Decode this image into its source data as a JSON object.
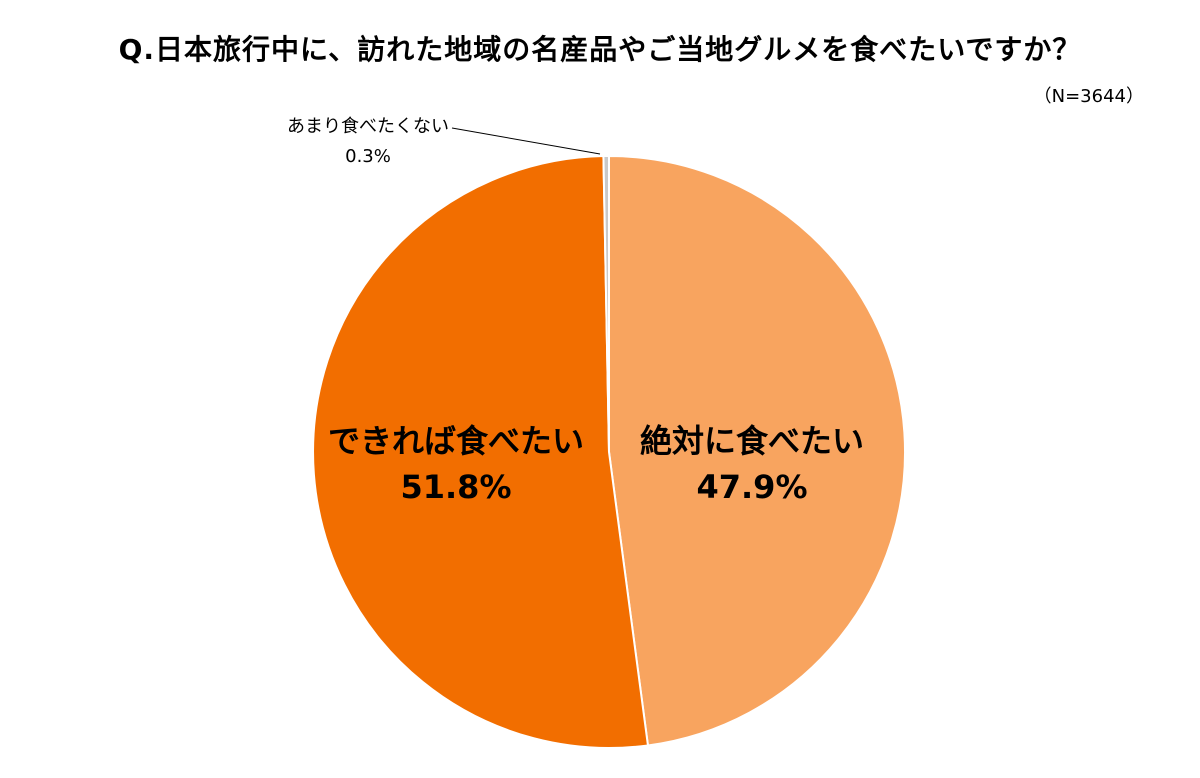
{
  "chart_data": {
    "type": "pie",
    "title": "Q.日本旅行中に、訪れた地域の名産品やご当地グルメを食べたいですか？",
    "sample_size": "（N=3644）",
    "start_angle_deg": -90,
    "direction": "clockwise",
    "slices": [
      {
        "label": "絶対に食べたい",
        "value": 47.9,
        "value_label": "47.9%",
        "color": "#F8A45F"
      },
      {
        "label": "できれば食べたい",
        "value": 51.8,
        "value_label": "51.8%",
        "color": "#F26E00"
      },
      {
        "label": "あまり食べたくない",
        "value": 0.3,
        "value_label": "0.3%",
        "color": "#C9C9C9"
      }
    ],
    "slice_border_color": "#ffffff"
  }
}
